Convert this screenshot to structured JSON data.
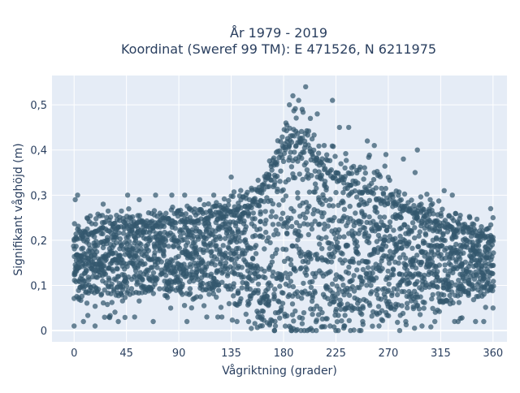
{
  "chart_data": {
    "type": "scatter",
    "title_line1": "År 1979 - 2019",
    "title_line2": "Koordinat (Sweref 99 TM): E 471526, N 6211975",
    "xlabel": "Vågriktning (grader)",
    "ylabel": "Signifikant våghöjd (m)",
    "xlim": [
      -19,
      372
    ],
    "ylim": [
      -0.025,
      0.565
    ],
    "xticks": [
      0,
      45,
      90,
      135,
      180,
      225,
      270,
      315,
      360
    ],
    "xtick_labels": [
      "0",
      "45",
      "90",
      "135",
      "180",
      "225",
      "270",
      "315",
      "360"
    ],
    "yticks": [
      0,
      0.1,
      0.2,
      0.3,
      0.4,
      0.5
    ],
    "ytick_labels": [
      "0",
      "0,1",
      "0,2",
      "0,3",
      "0,4",
      "0,5"
    ],
    "grid": true,
    "legend": "none",
    "marker_color": "#33586e",
    "plot_bg": "#e5ecf6",
    "envelope": {
      "direction_deg": [
        0,
        10,
        20,
        30,
        45,
        60,
        75,
        90,
        105,
        120,
        135,
        150,
        160,
        170,
        180,
        190,
        200,
        210,
        220,
        230,
        240,
        250,
        260,
        270,
        280,
        290,
        300,
        315,
        330,
        345,
        360
      ],
      "core_low_m": [
        0.09,
        0.08,
        0.08,
        0.08,
        0.08,
        0.09,
        0.09,
        0.09,
        0.09,
        0.09,
        0.08,
        0.06,
        0.03,
        0.01,
        0.01,
        0.01,
        0.01,
        0.01,
        0.02,
        0.02,
        0.03,
        0.03,
        0.04,
        0.04,
        0.05,
        0.05,
        0.06,
        0.06,
        0.07,
        0.08,
        0.09
      ],
      "core_high_m": [
        0.2,
        0.21,
        0.22,
        0.22,
        0.23,
        0.23,
        0.23,
        0.24,
        0.24,
        0.25,
        0.26,
        0.27,
        0.3,
        0.35,
        0.4,
        0.42,
        0.4,
        0.37,
        0.34,
        0.33,
        0.31,
        0.3,
        0.29,
        0.28,
        0.27,
        0.26,
        0.25,
        0.23,
        0.22,
        0.21,
        0.2
      ],
      "outer_high_m": [
        0.25,
        0.26,
        0.27,
        0.28,
        0.29,
        0.28,
        0.28,
        0.29,
        0.29,
        0.29,
        0.31,
        0.33,
        0.36,
        0.42,
        0.47,
        0.51,
        0.5,
        0.47,
        0.45,
        0.43,
        0.42,
        0.4,
        0.39,
        0.37,
        0.34,
        0.33,
        0.32,
        0.3,
        0.28,
        0.27,
        0.26
      ]
    },
    "outliers": [
      {
        "x": 0,
        "y": 0.01
      },
      {
        "x": 3,
        "y": 0.3
      },
      {
        "x": 1,
        "y": 0.29
      },
      {
        "x": 18,
        "y": 0.01
      },
      {
        "x": 8,
        "y": 0.02
      },
      {
        "x": 70,
        "y": 0.3
      },
      {
        "x": 84,
        "y": 0.3
      },
      {
        "x": 95,
        "y": 0.3
      },
      {
        "x": 68,
        "y": 0.02
      },
      {
        "x": 97,
        "y": 0.02
      },
      {
        "x": 135,
        "y": 0.34
      },
      {
        "x": 185,
        "y": 0.5
      },
      {
        "x": 188,
        "y": 0.52
      },
      {
        "x": 196,
        "y": 0.49
      },
      {
        "x": 199,
        "y": 0.54
      },
      {
        "x": 193,
        "y": 0.51
      },
      {
        "x": 182,
        "y": 0.46
      },
      {
        "x": 203,
        "y": 0.47
      },
      {
        "x": 209,
        "y": 0.48
      },
      {
        "x": 222,
        "y": 0.51
      },
      {
        "x": 228,
        "y": 0.45
      },
      {
        "x": 236,
        "y": 0.45
      },
      {
        "x": 252,
        "y": 0.42
      },
      {
        "x": 258,
        "y": 0.41
      },
      {
        "x": 268,
        "y": 0.39
      },
      {
        "x": 283,
        "y": 0.38
      },
      {
        "x": 295,
        "y": 0.4
      },
      {
        "x": 293,
        "y": 0.35
      },
      {
        "x": 306,
        "y": 0.29
      },
      {
        "x": 318,
        "y": 0.31
      },
      {
        "x": 325,
        "y": 0.3
      },
      {
        "x": 340,
        "y": 0.25
      },
      {
        "x": 358,
        "y": 0.27
      },
      {
        "x": 360,
        "y": 0.25
      },
      {
        "x": 350,
        "y": 0.23
      },
      {
        "x": 352,
        "y": 0.02
      },
      {
        "x": 360,
        "y": 0.05
      },
      {
        "x": 345,
        "y": 0.02
      },
      {
        "x": 330,
        "y": 0.02
      },
      {
        "x": 310,
        "y": 0.02
      },
      {
        "x": 299,
        "y": 0.01
      },
      {
        "x": 285,
        "y": 0.02
      },
      {
        "x": 262,
        "y": 0.01
      },
      {
        "x": 248,
        "y": 0.02
      },
      {
        "x": 232,
        "y": 0.01
      },
      {
        "x": 220,
        "y": 0.01
      },
      {
        "x": 205,
        "y": 0.0
      },
      {
        "x": 195,
        "y": 0.0
      },
      {
        "x": 187,
        "y": 0.0
      },
      {
        "x": 173,
        "y": 0.01
      },
      {
        "x": 160,
        "y": 0.01
      },
      {
        "x": 150,
        "y": 0.02
      },
      {
        "x": 140,
        "y": 0.02
      },
      {
        "x": 127,
        "y": 0.03
      },
      {
        "x": 114,
        "y": 0.03
      },
      {
        "x": 120,
        "y": 0.3
      },
      {
        "x": 108,
        "y": 0.29
      },
      {
        "x": 46,
        "y": 0.3
      },
      {
        "x": 25,
        "y": 0.28
      },
      {
        "x": 56,
        "y": 0.29
      },
      {
        "x": 38,
        "y": 0.02
      },
      {
        "x": 30,
        "y": 0.03
      },
      {
        "x": 52,
        "y": 0.03
      }
    ]
  }
}
